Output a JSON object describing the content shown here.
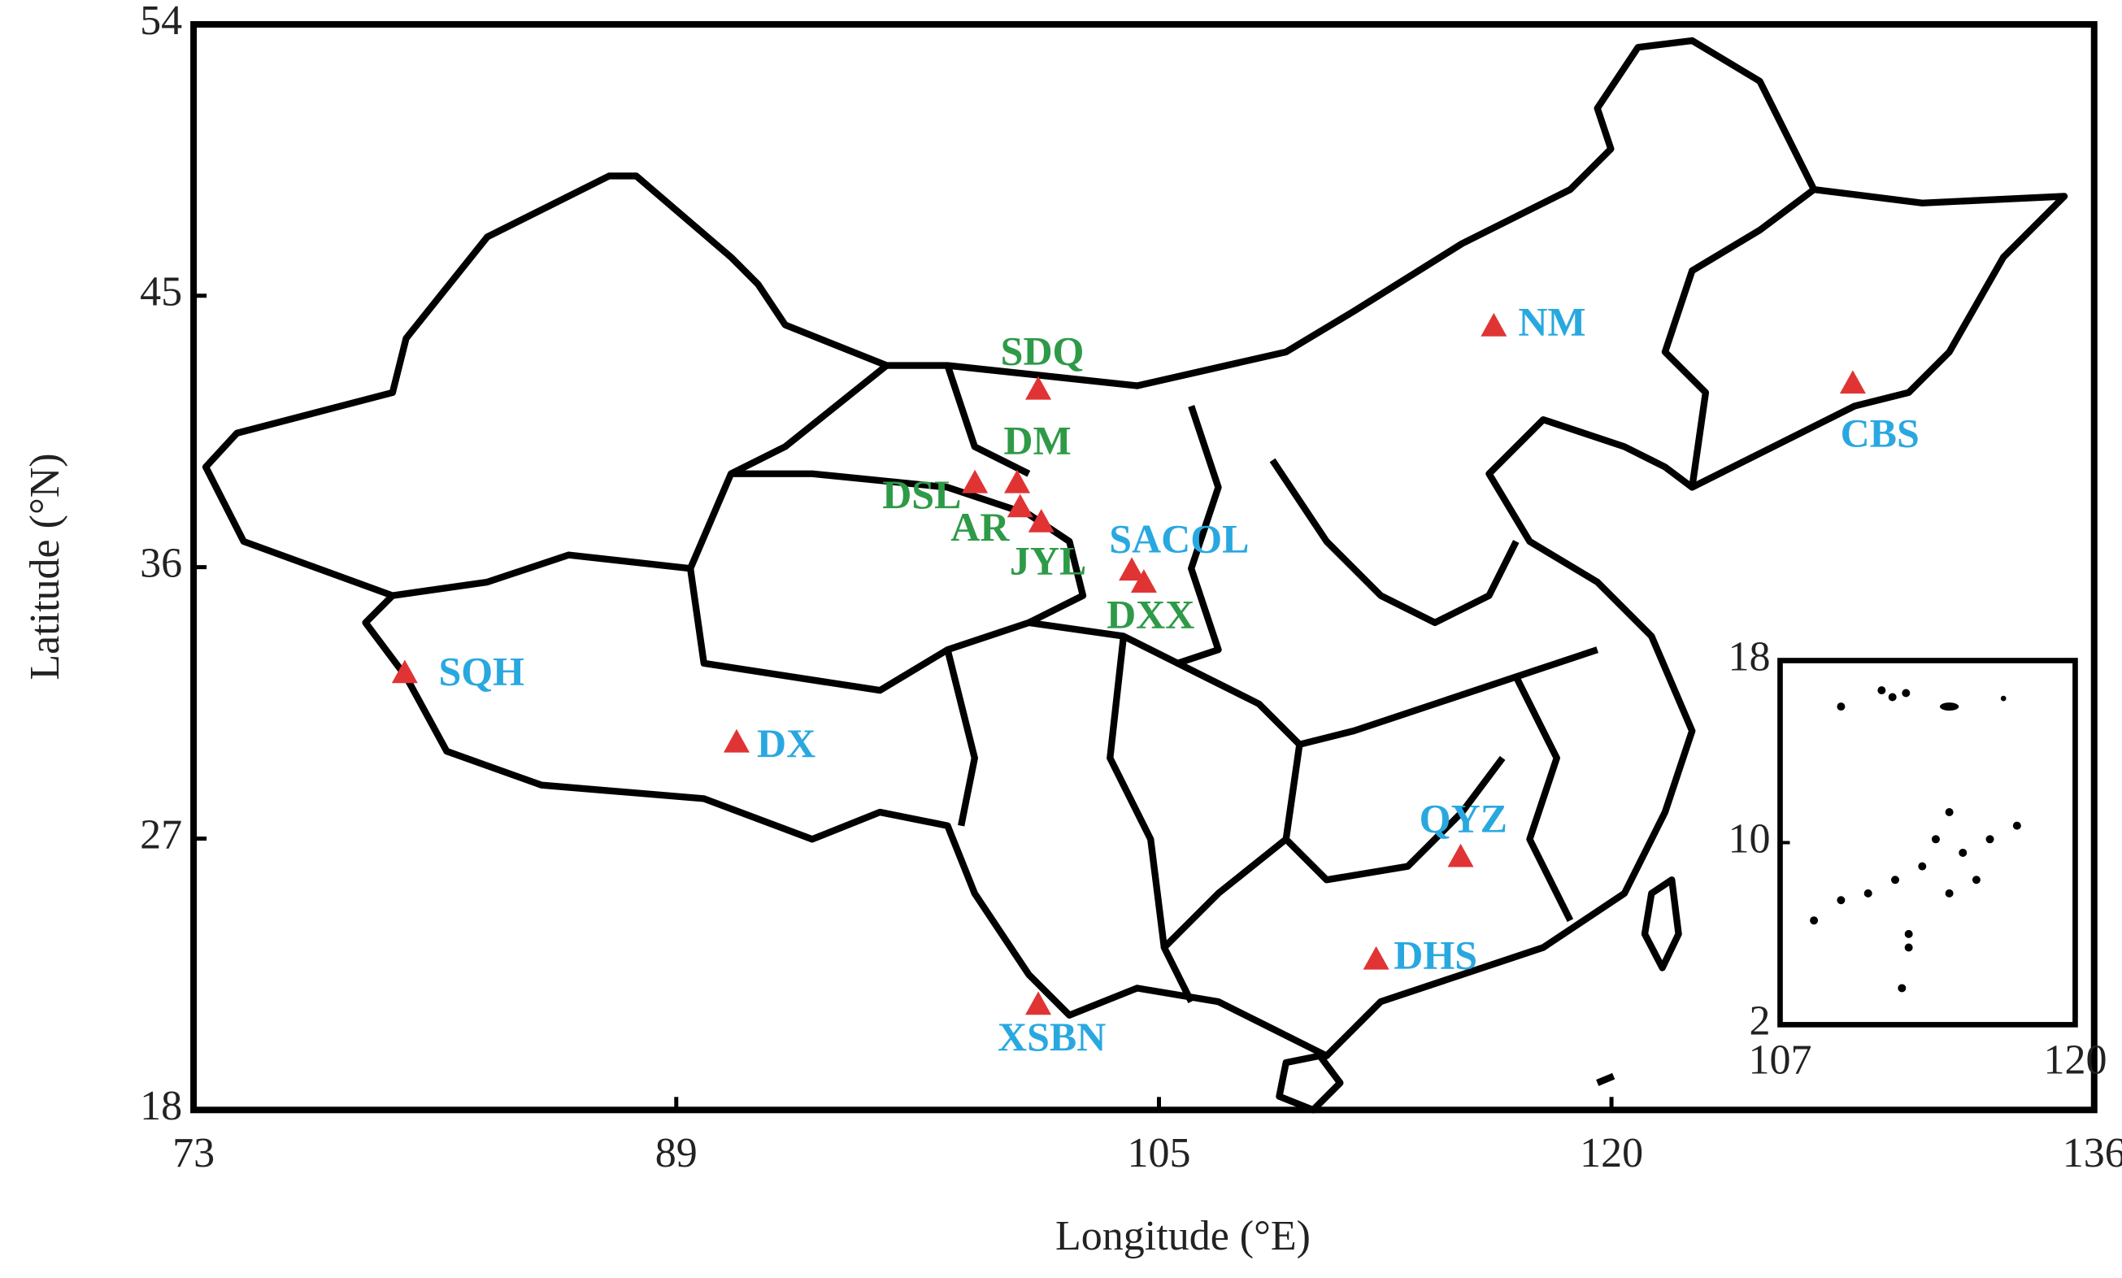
{
  "chart_data": {
    "type": "map",
    "xlabel": "Longitude (°E)",
    "ylabel": "Latitude (°N)",
    "xlim": [
      73,
      136
    ],
    "ylim": [
      18,
      54
    ],
    "xticks": [
      73,
      89,
      105,
      120,
      136
    ],
    "yticks": [
      18,
      27,
      36,
      45,
      54
    ],
    "marker_color": "#e03434",
    "stations": {
      "labels": [
        "SDQ",
        "NM",
        "CBS",
        "DM",
        "DSL",
        "AR",
        "JYL",
        "SACOL",
        "DXX",
        "SQH",
        "DX",
        "QYZ",
        "DHS",
        "XSBN"
      ],
      "x": [
        101.0,
        116.1,
        128.0,
        100.3,
        98.9,
        100.4,
        101.1,
        104.1,
        104.5,
        80.0,
        91.0,
        115.0,
        112.2,
        101.0
      ],
      "y": [
        41.9,
        44.0,
        42.1,
        38.8,
        38.8,
        38.0,
        37.5,
        35.9,
        35.5,
        32.5,
        30.2,
        26.4,
        23.0,
        21.5
      ],
      "label_colors": [
        "#2e9a48",
        "#29a8e0",
        "#29a8e0",
        "#2e9a48",
        "#2e9a48",
        "#2e9a48",
        "#2e9a48",
        "#29a8e0",
        "#2e9a48",
        "#29a8e0",
        "#29a8e0",
        "#29a8e0",
        "#29a8e0",
        "#29a8e0"
      ]
    },
    "inset": {
      "xlim": [
        107,
        120
      ],
      "ylim": [
        2,
        18
      ],
      "xticks": [
        107,
        120
      ],
      "yticks": [
        2,
        10,
        18
      ]
    }
  }
}
